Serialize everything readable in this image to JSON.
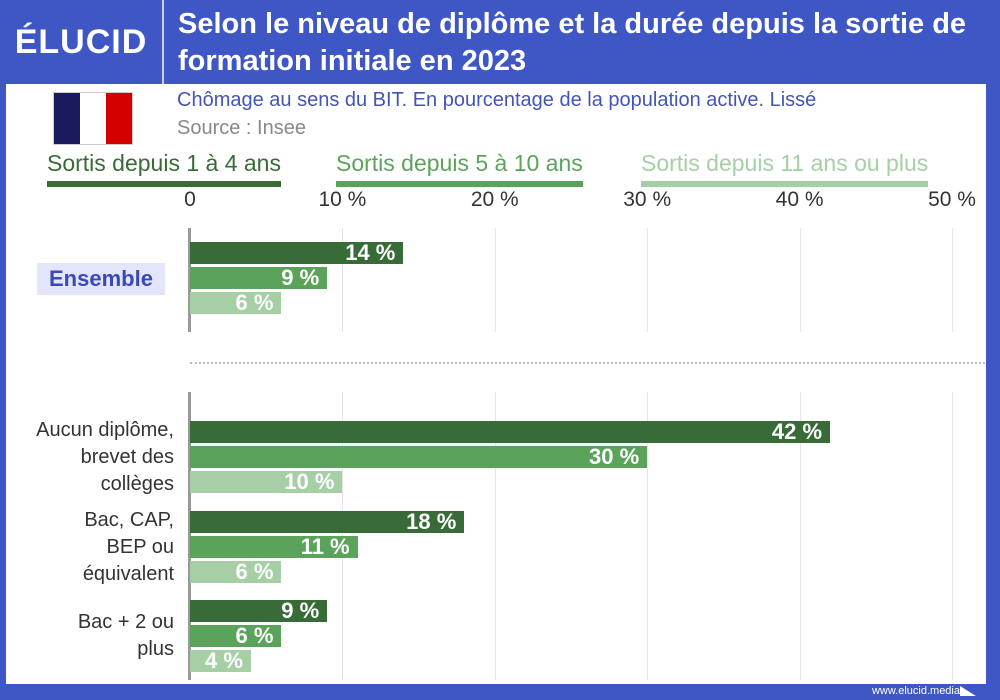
{
  "header": {
    "logo": "ÉLUCID",
    "title": "Selon le niveau de diplôme et la durée depuis la sortie de formation initiale en 2023"
  },
  "subtitle": "Chômage au sens du BIT. En pourcentage de la population active. Lissé",
  "source": "Source : Insee",
  "footer": "www.elucid.media",
  "flag_colors": [
    "#1a1a5e",
    "#ffffff",
    "#d40000"
  ],
  "chart_data": {
    "type": "bar",
    "orientation": "horizontal",
    "xlim": [
      0,
      50
    ],
    "ticks": [
      "0",
      "10 %",
      "20 %",
      "30 %",
      "40 %",
      "50 %"
    ],
    "tick_values": [
      0,
      10,
      20,
      30,
      40,
      50
    ],
    "grid": true,
    "legend_position": "top",
    "categories": [
      "Ensemble",
      "Aucun diplôme, brevet des collèges",
      "Bac, CAP, BEP ou équivalent",
      "Bac + 2 ou plus"
    ],
    "category_lines": [
      [
        "Ensemble"
      ],
      [
        "Aucun diplôme,",
        "brevet des",
        "collèges"
      ],
      [
        "Bac, CAP,",
        "BEP ou",
        "équivalent"
      ],
      [
        "Bac + 2 ou",
        "plus"
      ]
    ],
    "series": [
      {
        "name": "Sortis depuis 1 à 4 ans",
        "color": "#386b38",
        "values": [
          14,
          42,
          18,
          9
        ],
        "labels": [
          "14 %",
          "42 %",
          "18 %",
          "9 %"
        ]
      },
      {
        "name": "Sortis depuis 5 à 10 ans",
        "color": "#5ba35b",
        "values": [
          9,
          30,
          11,
          6
        ],
        "labels": [
          "9 %",
          "30 %",
          "11 %",
          "6 %"
        ]
      },
      {
        "name": "Sortis depuis 11 ans ou plus",
        "color": "#a6cfa6",
        "values": [
          6,
          10,
          6,
          4
        ],
        "labels": [
          "6 %",
          "10 %",
          "6 %",
          "4 %"
        ]
      }
    ]
  }
}
